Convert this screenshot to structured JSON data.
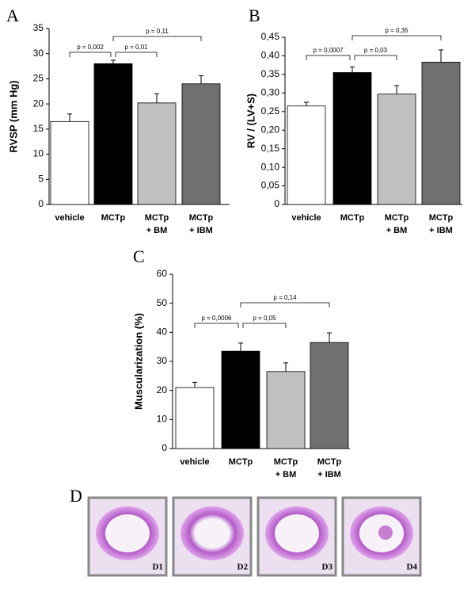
{
  "chart_data": [
    {
      "type": "bar",
      "panel": "A",
      "ylabel": "RVSP (mm Hg)",
      "categories": [
        [
          "vehicle"
        ],
        [
          "MCTp"
        ],
        [
          "MCTp",
          "+ BM"
        ],
        [
          "MCTp",
          "+ IBM"
        ]
      ],
      "values": [
        16.5,
        28,
        20.2,
        24
      ],
      "errors": [
        1.5,
        0.7,
        1.8,
        1.6
      ],
      "colors": [
        "#ffffff",
        "#000000",
        "#c0c0c0",
        "#707070"
      ],
      "ylim": [
        0,
        35
      ],
      "yticks": [
        0,
        5,
        10,
        15,
        20,
        25,
        30,
        35
      ],
      "comparisons": [
        {
          "pair": [
            0,
            1
          ],
          "label": "p = 0,002"
        },
        {
          "pair": [
            1,
            2
          ],
          "label": "p = 0,01"
        },
        {
          "pair": [
            1,
            3
          ],
          "label": "p = 0,11"
        }
      ]
    },
    {
      "type": "bar",
      "panel": "B",
      "ylabel": "RV / (LV+S)",
      "categories": [
        [
          "vehicle"
        ],
        [
          "MCTp"
        ],
        [
          "MCTp",
          "+ BM"
        ],
        [
          "MCTp",
          "+ IBM"
        ]
      ],
      "values": [
        0.265,
        0.355,
        0.297,
        0.383
      ],
      "errors": [
        0.01,
        0.015,
        0.023,
        0.033
      ],
      "colors": [
        "#ffffff",
        "#000000",
        "#c0c0c0",
        "#707070"
      ],
      "ylim": [
        0,
        0.45
      ],
      "yticks": [
        0,
        {
          "value": 0.05,
          "label": "0,05"
        },
        {
          "value": 0.1,
          "label": "0,10"
        },
        {
          "value": 0.15,
          "label": "0,15"
        },
        {
          "value": 0.2,
          "label": "0,20"
        },
        {
          "value": 0.25,
          "label": "0,25"
        },
        {
          "value": 0.3,
          "label": "0,30"
        },
        {
          "value": 0.35,
          "label": "0,35"
        },
        {
          "value": 0.4,
          "label": "0,40"
        },
        {
          "value": 0.45,
          "label": "0,45"
        }
      ],
      "comparisons": [
        {
          "pair": [
            0,
            1
          ],
          "label": "p = 0,0007"
        },
        {
          "pair": [
            1,
            2
          ],
          "label": "p = 0,03"
        },
        {
          "pair": [
            1,
            3
          ],
          "label": "p = 0,35"
        }
      ]
    },
    {
      "type": "bar",
      "panel": "C",
      "ylabel": "Muscularization (%)",
      "categories": [
        [
          "vehicle"
        ],
        [
          "MCTp"
        ],
        [
          "MCTp",
          "+ BM"
        ],
        [
          "MCTp",
          "+ IBM"
        ]
      ],
      "values": [
        21,
        33.5,
        26.5,
        36.5
      ],
      "errors": [
        1.8,
        2.8,
        3,
        3.3
      ],
      "colors": [
        "#ffffff",
        "#000000",
        "#c0c0c0",
        "#707070"
      ],
      "ylim": [
        0,
        60
      ],
      "yticks": [
        0,
        10,
        20,
        30,
        40,
        50,
        60
      ],
      "comparisons": [
        {
          "pair": [
            0,
            1
          ],
          "label": "p = 0,0006"
        },
        {
          "pair": [
            1,
            2
          ],
          "label": "p = 0,05"
        },
        {
          "pair": [
            1,
            3
          ],
          "label": "p = 0,14"
        }
      ]
    }
  ],
  "panel_d": {
    "label": "D",
    "images": [
      "D1",
      "D2",
      "D3",
      "D4"
    ]
  }
}
